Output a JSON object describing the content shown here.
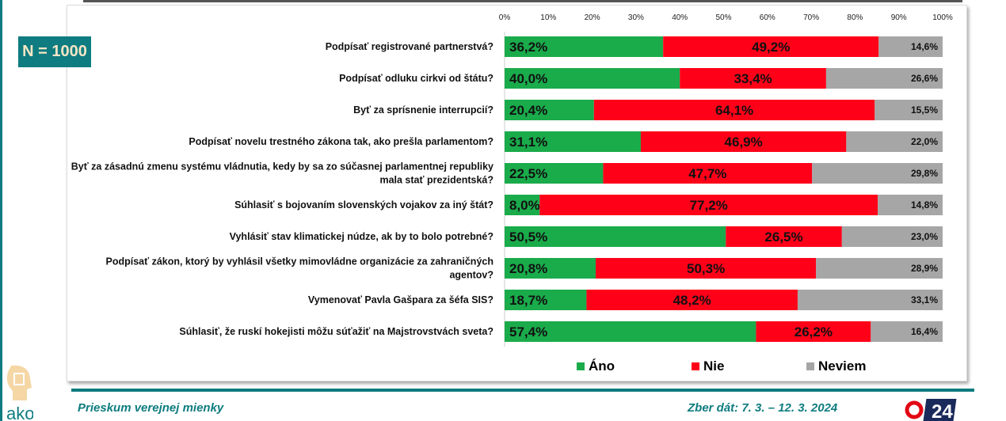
{
  "sample": "N = 1000",
  "chart_data": {
    "type": "bar",
    "stacked": true,
    "orientation": "horizontal",
    "xlim": [
      0,
      100
    ],
    "ticks": [
      "0%",
      "10%",
      "20%",
      "30%",
      "40%",
      "50%",
      "60%",
      "70%",
      "80%",
      "90%",
      "100%"
    ],
    "categories": [
      [
        "Podpísať registrované partnerstvá?"
      ],
      [
        "Podpísať odluku cirkvi od štátu?"
      ],
      [
        "Byť za sprísnenie interrupcií?"
      ],
      [
        "Podpísať novelu trestného zákona tak, ako prešla parlamentom?"
      ],
      [
        "Byť za zásadnú zmenu systému vládnutia, kedy by sa zo súčasnej parlamentnej republiky",
        "mala stať prezidentská?"
      ],
      [
        "Súhlasiť s bojovaním slovenských vojakov za iný štát?"
      ],
      [
        "Vyhlásiť stav klimatickej núdze, ak by to bolo potrebné?"
      ],
      [
        "Podpísať zákon, ktorý by vyhlásil všetky mimovládne organizácie za zahraničných",
        "agentov?"
      ],
      [
        "Vymenovať Pavla Gašpara za šéfa SIS?"
      ],
      [
        "Súhlasiť, že ruskí hokejisti môžu súťažiť na Majstrovstvách sveta?"
      ]
    ],
    "series": [
      {
        "name": "Áno",
        "color": "#1aab4b",
        "values": [
          36.2,
          40.0,
          20.4,
          31.1,
          22.5,
          8.0,
          50.5,
          20.8,
          18.7,
          57.4
        ]
      },
      {
        "name": "Nie",
        "color": "#ff0019",
        "values": [
          49.2,
          33.4,
          64.1,
          46.9,
          47.7,
          77.2,
          26.5,
          50.3,
          48.2,
          26.2
        ]
      },
      {
        "name": "Neviem",
        "color": "#a6a6a6",
        "values": [
          14.6,
          26.6,
          15.5,
          22.0,
          29.8,
          14.8,
          23.0,
          28.9,
          33.1,
          16.4
        ]
      }
    ],
    "legend": "bottom"
  },
  "footer": {
    "left": "Prieskum verejnej mienky",
    "right": "Zber dát: 7. 3. – 12. 3. 2024",
    "logo": "ako",
    "tv_logo": "24"
  }
}
